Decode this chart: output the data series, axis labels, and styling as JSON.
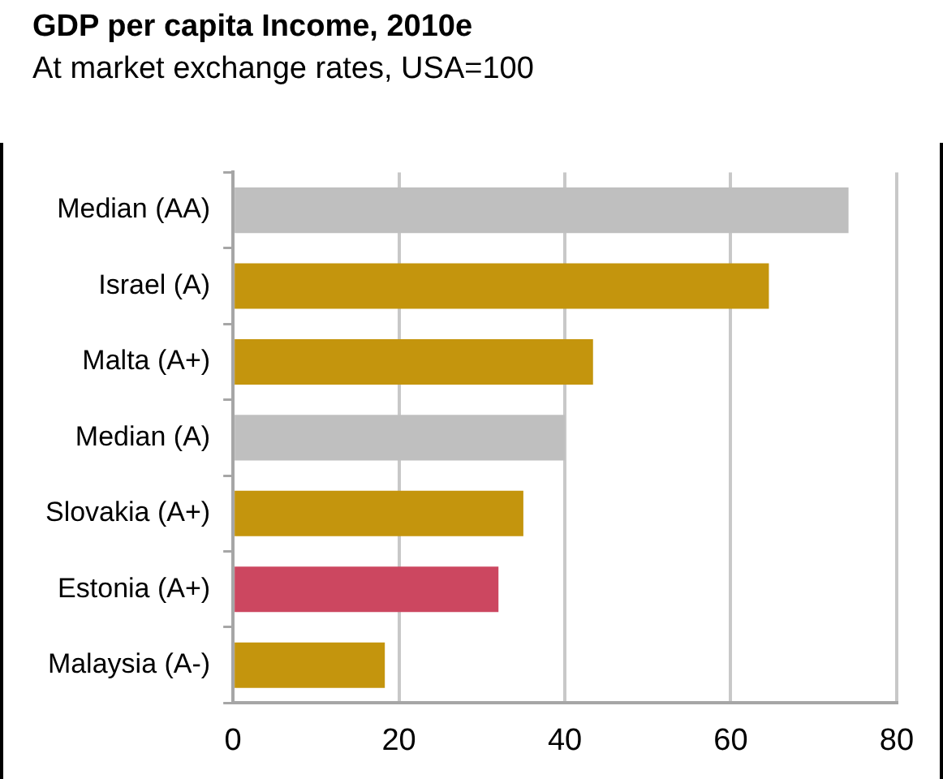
{
  "chart_data": {
    "type": "bar",
    "orientation": "horizontal",
    "title": "GDP per capita Income, 2010e",
    "subtitle": "At market exchange rates, USA=100",
    "categories": [
      "Median (AA)",
      "Israel (A)",
      "Malta (A+)",
      "Median (A)",
      "Slovakia (A+)",
      "Estonia (A+)",
      "Malaysia (A-)"
    ],
    "values": [
      74.2,
      64.6,
      43.4,
      40,
      35.0,
      32.0,
      18.3
    ],
    "colors": [
      "#bfbfbf",
      "#c4950d",
      "#c4950d",
      "#bfbfbf",
      "#c4950d",
      "#cc4760",
      "#c4950d"
    ],
    "xlim": [
      0,
      80
    ],
    "xticks": [
      0,
      20,
      40,
      60,
      80
    ],
    "grid": "x",
    "legend": false
  }
}
